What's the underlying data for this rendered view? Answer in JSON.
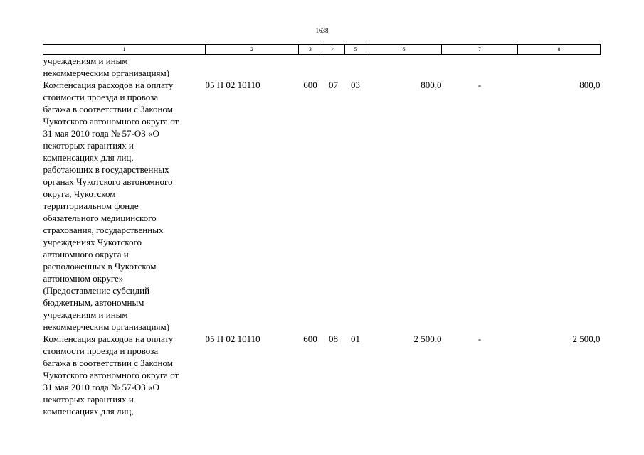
{
  "page_number": "1638",
  "header": [
    "1",
    "2",
    "3",
    "4",
    "5",
    "6",
    "7",
    "8"
  ],
  "rows": [
    {
      "lines": [
        "учреждениям и иным",
        "некоммерческим организациям)"
      ],
      "code": "",
      "c3": "",
      "c4": "",
      "c5": "",
      "c6": "",
      "c7": "",
      "c8": ""
    },
    {
      "lines": [
        "Компенсация расходов на оплату",
        "стоимости проезда и провоза",
        "багажа в соответствии с Законом",
        "Чукотского автономного округа от",
        "31 мая 2010 года № 57-ОЗ «О",
        "некоторых гарантиях и",
        "компенсациях для лиц,",
        "работающих в государственных",
        "органах Чукотского автономного",
        "округа, Чукотском",
        "территориальном фонде",
        "обязательного медицинского",
        "страхования, государственных",
        "учреждениях Чукотского",
        "автономного округа и",
        "расположенных в Чукотском",
        "автономном округе»",
        "(Предоставление субсидий",
        "бюджетным, автономным",
        "учреждениям и иным",
        "некоммерческим организациям)"
      ],
      "code": "05 П 02 10110",
      "c3": "600",
      "c4": "07",
      "c5": "03",
      "c6": "800,0",
      "c7": "-",
      "c8": "800,0"
    },
    {
      "lines": [
        "Компенсация расходов на оплату",
        "стоимости проезда и провоза",
        "багажа в соответствии с Законом",
        "Чукотского автономного округа от",
        "31 мая 2010 года № 57-ОЗ «О",
        "некоторых гарантиях и",
        "компенсациях для лиц,"
      ],
      "code": "05 П 02 10110",
      "c3": "600",
      "c4": "08",
      "c5": "01",
      "c6": "2 500,0",
      "c7": "-",
      "c8": "2 500,0"
    }
  ]
}
